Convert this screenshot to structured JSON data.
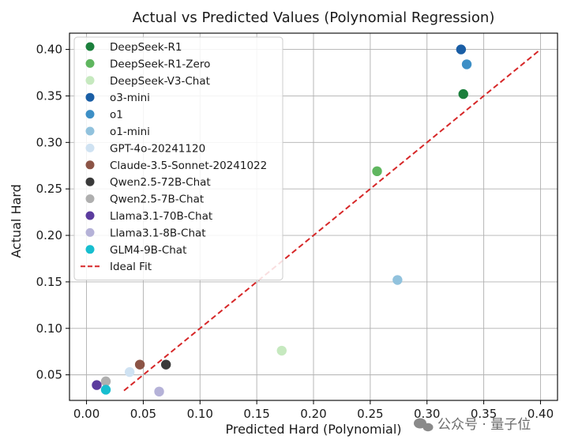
{
  "watermark": {
    "text": "公众号 · 量子位"
  },
  "chart_data": {
    "type": "scatter",
    "title": "Actual vs Predicted Values (Polynomial Regression)",
    "xlabel": "Predicted Hard (Polynomial)",
    "ylabel": "Actual Hard",
    "xlim": [
      -0.015,
      0.415
    ],
    "ylim": [
      0.0225,
      0.4175
    ],
    "xticks": [
      "0.00",
      "0.05",
      "0.10",
      "0.15",
      "0.20",
      "0.25",
      "0.30",
      "0.35",
      "0.40"
    ],
    "yticks": [
      "0.05",
      "0.10",
      "0.15",
      "0.20",
      "0.25",
      "0.30",
      "0.35",
      "0.40"
    ],
    "grid": true,
    "legend_position": "top-left",
    "series": [
      {
        "name": "DeepSeek-R1",
        "color": "#1b7f3c",
        "points": [
          [
            0.332,
            0.352
          ]
        ]
      },
      {
        "name": "DeepSeek-R1-Zero",
        "color": "#5fb65f",
        "points": [
          [
            0.256,
            0.269
          ]
        ]
      },
      {
        "name": "DeepSeek-V3-Chat",
        "color": "#c6e9bf",
        "points": [
          [
            0.172,
            0.076
          ]
        ]
      },
      {
        "name": "o3-mini",
        "color": "#1a5ea5",
        "points": [
          [
            0.33,
            0.4
          ]
        ]
      },
      {
        "name": "o1",
        "color": "#3d8fc6",
        "points": [
          [
            0.335,
            0.384
          ]
        ]
      },
      {
        "name": "o1-mini",
        "color": "#91c2dd",
        "points": [
          [
            0.274,
            0.152
          ]
        ]
      },
      {
        "name": "GPT-4o-20241120",
        "color": "#cfe2f2",
        "points": [
          [
            0.038,
            0.053
          ]
        ]
      },
      {
        "name": "Claude-3.5-Sonnet-20241022",
        "color": "#8c5446",
        "points": [
          [
            0.047,
            0.061
          ]
        ]
      },
      {
        "name": "Qwen2.5-72B-Chat",
        "color": "#3a3a3a",
        "points": [
          [
            0.07,
            0.061
          ]
        ]
      },
      {
        "name": "Qwen2.5-7B-Chat",
        "color": "#afafaf",
        "points": [
          [
            0.017,
            0.043
          ]
        ]
      },
      {
        "name": "Llama3.1-70B-Chat",
        "color": "#5b3c9e",
        "points": [
          [
            0.009,
            0.039
          ]
        ]
      },
      {
        "name": "Llama3.1-8B-Chat",
        "color": "#b5b2d8",
        "points": [
          [
            0.064,
            0.032
          ]
        ]
      },
      {
        "name": "GLM4-9B-Chat",
        "color": "#17becf",
        "points": [
          [
            0.017,
            0.034
          ]
        ]
      }
    ],
    "ideal_fit": {
      "name": "Ideal Fit",
      "color": "#d62728",
      "x": [
        0.033,
        0.4
      ],
      "y": [
        0.033,
        0.4
      ]
    }
  }
}
